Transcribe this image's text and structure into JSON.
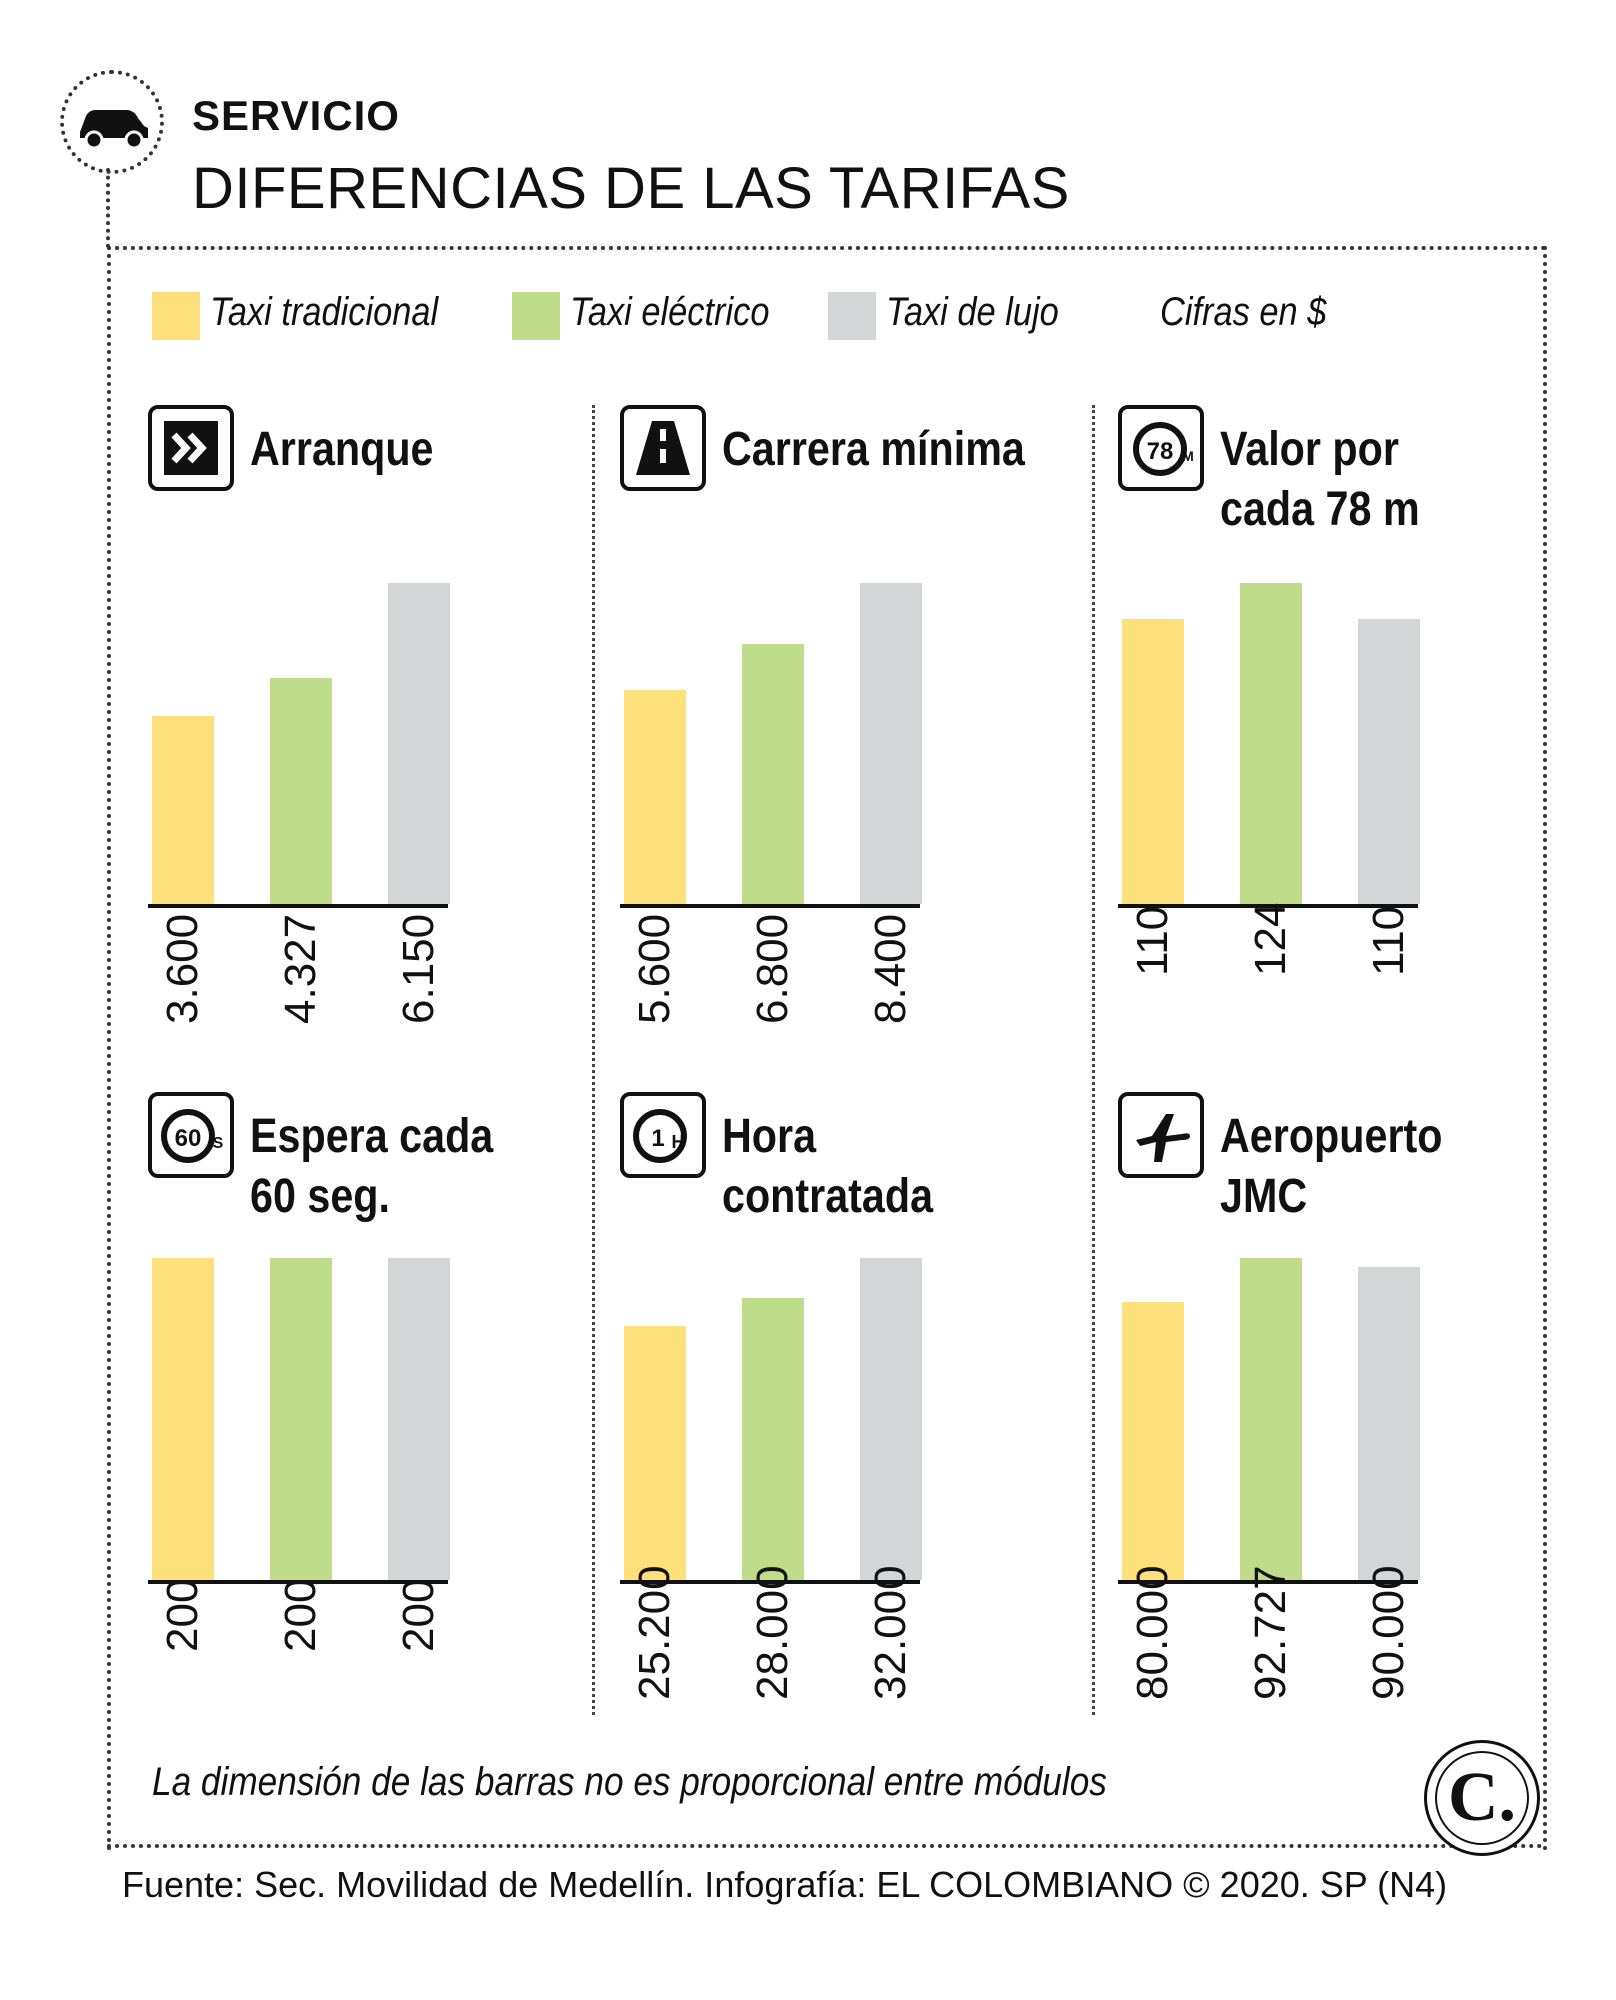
{
  "header": {
    "kicker": "SERVICIO",
    "title": "DIFERENCIAS DE LAS TARIFAS"
  },
  "legend": [
    {
      "label": "Taxi tradicional",
      "color": "#fde07a"
    },
    {
      "label": "Taxi eléctrico",
      "color": "#bfdc8b"
    },
    {
      "label": "Taxi de lujo",
      "color": "#d4d5d7"
    }
  ],
  "units_note": "Cifras en $",
  "footer": {
    "note": "La dimensión de las barras no es proporcional entre módulos",
    "source": "Fuente: Sec. Movilidad de Medellín. Infografía: EL COLOMBIANO © 2020. SP (N4)",
    "logo_letter": "C."
  },
  "chart_data": [
    {
      "type": "bar",
      "title": "Arranque",
      "icon": "fast-forward-icon",
      "categories": [
        "Taxi tradicional",
        "Taxi eléctrico",
        "Taxi de lujo"
      ],
      "values": [
        3600,
        4327,
        6150
      ],
      "value_labels": [
        "3.600",
        "4.327",
        "6.150"
      ]
    },
    {
      "type": "bar",
      "title": "Carrera mínima",
      "icon": "road-icon",
      "categories": [
        "Taxi tradicional",
        "Taxi eléctrico",
        "Taxi de lujo"
      ],
      "values": [
        5600,
        6800,
        8400
      ],
      "value_labels": [
        "5.600",
        "6.800",
        "8.400"
      ]
    },
    {
      "type": "bar",
      "title": "Valor por\ncada 78 m",
      "icon": "distance-78m-icon",
      "categories": [
        "Taxi tradicional",
        "Taxi eléctrico",
        "Taxi de lujo"
      ],
      "values": [
        110,
        124,
        110
      ],
      "value_labels": [
        "110",
        "124",
        "110"
      ]
    },
    {
      "type": "bar",
      "title": "Espera cada\n60 seg.",
      "icon": "timer-60s-icon",
      "categories": [
        "Taxi tradicional",
        "Taxi eléctrico",
        "Taxi de lujo"
      ],
      "values": [
        200,
        200,
        200
      ],
      "value_labels": [
        "200",
        "200",
        "200"
      ]
    },
    {
      "type": "bar",
      "title": "Hora\ncontratada",
      "icon": "clock-1h-icon",
      "categories": [
        "Taxi tradicional",
        "Taxi eléctrico",
        "Taxi de lujo"
      ],
      "values": [
        25200,
        28000,
        32000
      ],
      "value_labels": [
        "25.200",
        "28.000",
        "32.000"
      ]
    },
    {
      "type": "bar",
      "title": "Aeropuerto\nJMC",
      "icon": "airplane-icon",
      "categories": [
        "Taxi tradicional",
        "Taxi eléctrico",
        "Taxi de lujo"
      ],
      "values": [
        80000,
        92727,
        90000
      ],
      "value_labels": [
        "80.000",
        "92.727",
        "90.000"
      ]
    }
  ]
}
